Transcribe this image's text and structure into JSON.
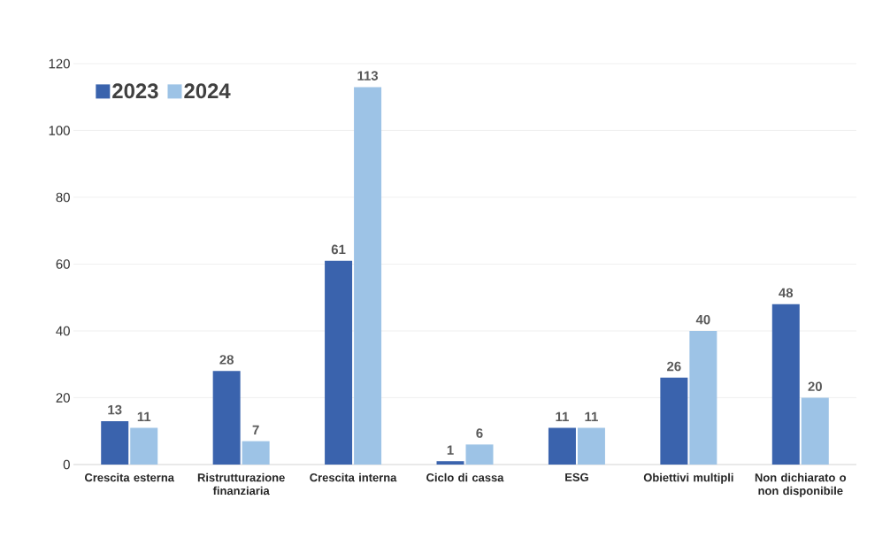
{
  "chart_data": {
    "type": "bar",
    "categories": [
      "Crescita esterna",
      "Ristrutturazione finanziaria",
      "Crescita interna",
      "Ciclo di cassa",
      "ESG",
      "Obiettivi multipli",
      "Non dichiarato o non disponibile"
    ],
    "series": [
      {
        "name": "2023",
        "color": "#3a63ad",
        "values": [
          13,
          28,
          61,
          1,
          11,
          26,
          48
        ]
      },
      {
        "name": "2024",
        "color": "#9dc3e6",
        "values": [
          11,
          7,
          113,
          6,
          11,
          40,
          20
        ]
      }
    ],
    "ylim": [
      0,
      120
    ],
    "yticks": [
      0,
      20,
      40,
      60,
      80,
      100,
      120
    ],
    "grid": "y",
    "legend": "top left",
    "data_labels": true
  }
}
